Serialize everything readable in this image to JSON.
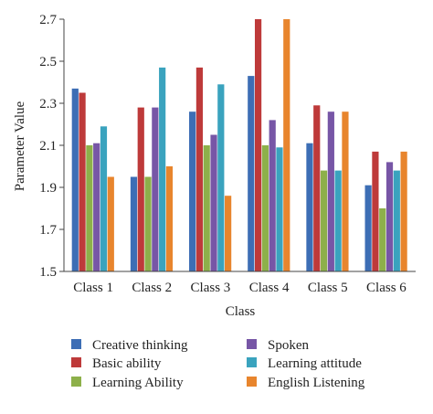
{
  "chart_data": {
    "type": "bar",
    "categories": [
      "Class 1",
      "Class 2",
      "Class 3",
      "Class 4",
      "Class 5",
      "Class 6"
    ],
    "series": [
      {
        "name": "Creative thinking",
        "color": "#3d6eb5",
        "values": [
          2.37,
          1.95,
          2.26,
          2.43,
          2.11,
          1.91
        ]
      },
      {
        "name": "Basic ability",
        "color": "#be3a3a",
        "values": [
          2.35,
          2.28,
          2.47,
          2.7,
          2.29,
          2.07
        ]
      },
      {
        "name": "Learning Ability",
        "color": "#8db04a",
        "values": [
          2.1,
          1.95,
          2.1,
          2.1,
          1.98,
          1.8
        ]
      },
      {
        "name": "Spoken",
        "color": "#7756a6",
        "values": [
          2.11,
          2.28,
          2.15,
          2.22,
          2.26,
          2.02
        ]
      },
      {
        "name": "Learning attitude",
        "color": "#3aa3be",
        "values": [
          2.19,
          2.47,
          2.39,
          2.09,
          1.98,
          1.98
        ]
      },
      {
        "name": "English Listening",
        "color": "#e8852d",
        "values": [
          1.95,
          2.0,
          1.86,
          2.7,
          2.26,
          2.07
        ]
      }
    ],
    "xlabel": "Class",
    "ylabel": "Parameter Value",
    "ylim": [
      1.5,
      2.7
    ],
    "yticks": [
      "1.5",
      "1.7",
      "1.9",
      "2.1",
      "2.3",
      "2.5",
      "2.7"
    ],
    "grid": false,
    "legend_position": "bottom"
  }
}
